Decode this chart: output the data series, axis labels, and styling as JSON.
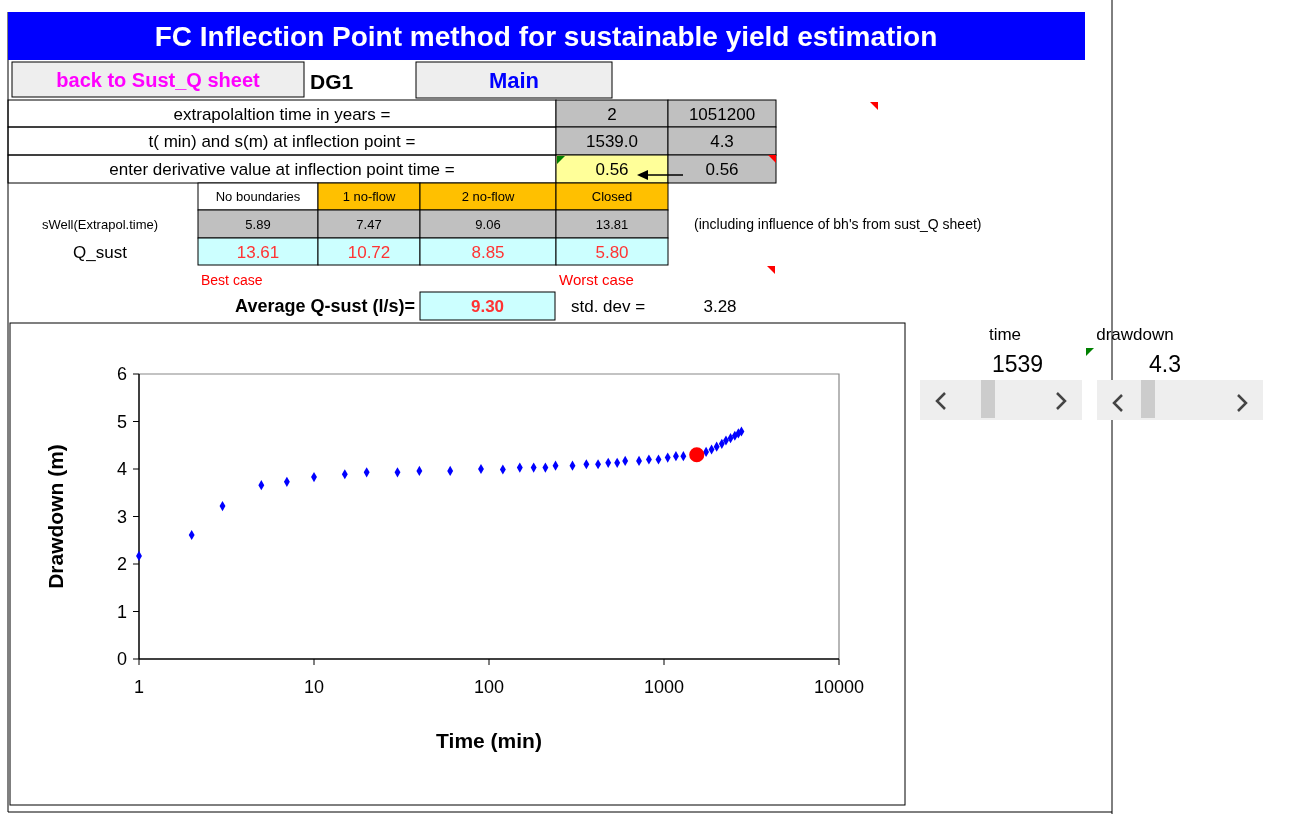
{
  "chart_data": {
    "type": "scatter",
    "title": "FC  Inflection Point  method for sustainable yield estimation",
    "xlabel": "Time (min)",
    "ylabel": "Drawdown (m)",
    "log": "x",
    "grid": false,
    "xlim": [
      1,
      10000
    ],
    "xticks": [
      1,
      10,
      100,
      1000,
      10000
    ],
    "ylim": [
      0,
      6
    ],
    "yticks": [
      0,
      1,
      2,
      3,
      4,
      5,
      6
    ],
    "series": [
      {
        "color": "#0000ff",
        "marker": "diamond",
        "x": [
          1,
          2,
          3,
          5,
          7,
          10,
          15,
          20,
          30,
          40,
          60,
          90,
          120,
          150,
          180,
          210,
          240,
          300,
          360,
          420,
          480,
          540,
          600,
          720,
          820,
          930,
          1050,
          1170,
          1290,
          1740,
          1870,
          2000,
          2140,
          2260,
          2400,
          2540,
          2660,
          2770
        ],
        "values": [
          2.17,
          2.61,
          3.22,
          3.66,
          3.73,
          3.83,
          3.89,
          3.93,
          3.93,
          3.96,
          3.96,
          4.0,
          3.99,
          4.03,
          4.03,
          4.03,
          4.07,
          4.07,
          4.1,
          4.1,
          4.13,
          4.13,
          4.17,
          4.17,
          4.2,
          4.2,
          4.24,
          4.27,
          4.27,
          4.36,
          4.41,
          4.47,
          4.53,
          4.6,
          4.65,
          4.7,
          4.75,
          4.79
        ]
      },
      {
        "color": "#ff0000",
        "marker": "circle",
        "x": [
          1539
        ],
        "values": [
          4.3
        ]
      }
    ],
    "annotations": [
      "back to Sust_Q sheet",
      "DG1",
      "Main",
      "extrapolaltion time in years =",
      "2",
      "1051200",
      "t( min) and s(m) at inflection point =",
      "1539.0",
      "4.3",
      "enter derivative value at inflection point time =",
      "0.56",
      "0.56",
      "No boundaries",
      "1 no-flow",
      "2 no-flow",
      "Closed",
      "sWell(Extrapol.time)",
      "5.89",
      "7.47",
      "9.06",
      "13.81",
      "(including influence of bh's from sust_Q sheet)",
      "Q_sust",
      "13.61",
      "10.72",
      "8.85",
      "5.80",
      "Best case",
      "Worst case",
      "Average Q-sust (l/s)=",
      "9.30",
      "std. dev =",
      "3.28",
      "time",
      "1539",
      "drawdown",
      "4.3"
    ]
  }
}
